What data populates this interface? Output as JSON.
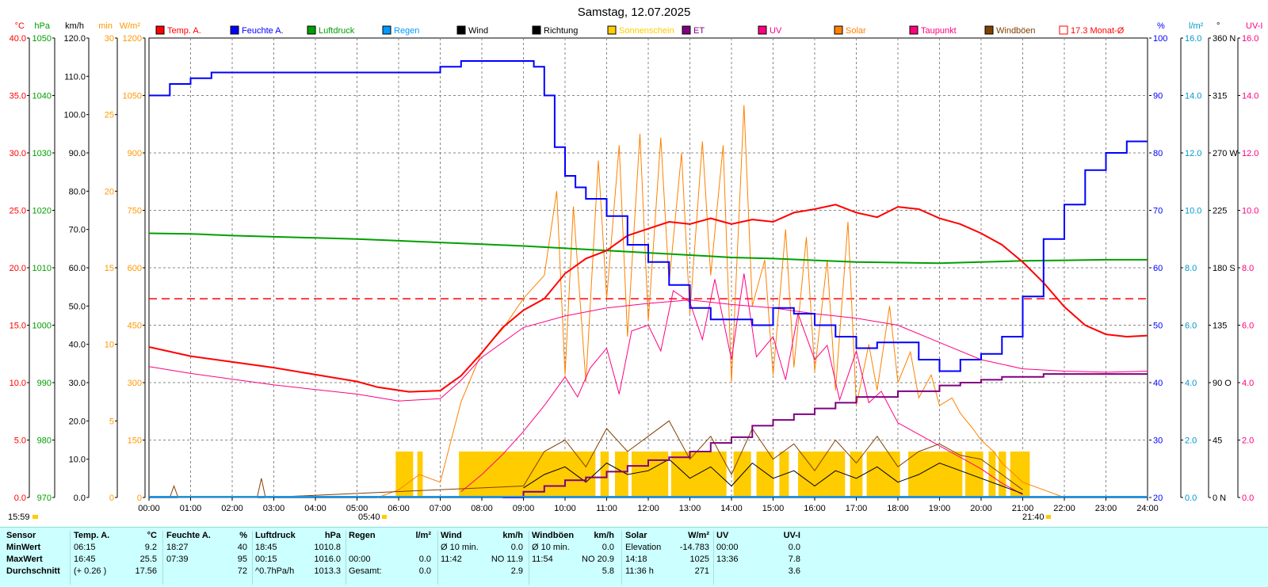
{
  "title": "Samstag, 12.07.2025",
  "current_time": "15:59",
  "sunrise": "05:40",
  "sunset": "21:40",
  "legend": [
    {
      "label": "Temp. A.",
      "color": "#ff0000"
    },
    {
      "label": "Feuchte A.",
      "color": "#0000ff"
    },
    {
      "label": "Luftdruck",
      "color": "#00a000"
    },
    {
      "label": "Regen",
      "color": "#0099ff"
    },
    {
      "label": "Wind",
      "color": "#000000"
    },
    {
      "label": "Richtung",
      "color": "#000000"
    },
    {
      "label": "Sonnenschein",
      "color": "#ffcc00"
    },
    {
      "label": "ET",
      "color": "#800080"
    },
    {
      "label": "UV",
      "color": "#ff0080"
    },
    {
      "label": "Solar",
      "color": "#ff8000"
    },
    {
      "label": "Taupunkt",
      "color": "#ff0080"
    },
    {
      "label": "Windböen",
      "color": "#804000"
    },
    {
      "label": "17.3 Monat-Ø",
      "color": "#ff0000"
    }
  ],
  "axes_left": [
    {
      "unit": "°C",
      "color": "#ff0000",
      "ticks": [
        "40.0",
        "35.0",
        "30.0",
        "25.0",
        "20.0",
        "15.0",
        "10.0",
        "5.0",
        "0.0"
      ]
    },
    {
      "unit": "hPa",
      "color": "#00a000",
      "ticks": [
        "1050",
        "1040",
        "1030",
        "1020",
        "1010",
        "1000",
        "990",
        "980",
        "970"
      ]
    },
    {
      "unit": "km/h",
      "color": "#000000",
      "ticks": [
        "120.0",
        "110.0",
        "100.0",
        "90.0",
        "80.0",
        "70.0",
        "60.0",
        "50.0",
        "40.0",
        "30.0",
        "20.0",
        "10.0",
        "0.0"
      ]
    },
    {
      "unit": "min",
      "color": "#ff9900",
      "ticks": [
        "30",
        "25",
        "20",
        "15",
        "10",
        "5",
        "0"
      ]
    },
    {
      "unit": "W/m²",
      "color": "#ff9900",
      "ticks": [
        "1200",
        "1050",
        "900",
        "750",
        "600",
        "450",
        "300",
        "150",
        "0"
      ]
    }
  ],
  "axes_right": [
    {
      "unit": "%",
      "color": "#0000ff",
      "ticks": [
        "100",
        "90",
        "80",
        "70",
        "60",
        "50",
        "40",
        "30",
        "20"
      ]
    },
    {
      "unit": "l/m²",
      "color": "#0099cc",
      "ticks": [
        "16.0",
        "14.0",
        "12.0",
        "10.0",
        "8.0",
        "6.0",
        "4.0",
        "2.0",
        "0.0"
      ]
    },
    {
      "unit": "°",
      "color": "#000000",
      "ticks": [
        "360 N",
        "315",
        "270 W",
        "225",
        "180 S",
        "135",
        "90 O",
        "45",
        "0 N"
      ]
    },
    {
      "unit": "UV-I",
      "color": "#ff0080",
      "ticks": [
        "16.0",
        "14.0",
        "12.0",
        "10.0",
        "8.0",
        "6.0",
        "4.0",
        "2.0",
        "0.0"
      ]
    }
  ],
  "x_ticks": [
    "00:00",
    "01:00",
    "02:00",
    "03:00",
    "04:00",
    "05:00",
    "06:00",
    "07:00",
    "08:00",
    "09:00",
    "10:00",
    "11:00",
    "12:00",
    "13:00",
    "14:00",
    "15:00",
    "16:00",
    "17:00",
    "18:00",
    "19:00",
    "20:00",
    "21:00",
    "22:00",
    "23:00",
    "24:00"
  ],
  "chart_data": {
    "type": "line",
    "title": "Samstag, 12.07.2025",
    "xlim": [
      "00:00",
      "24:00"
    ],
    "series": [
      {
        "name": "Temp. A.",
        "unit": "°C",
        "color": "#ff0000",
        "ylim": [
          0,
          40
        ],
        "x": [
          0,
          1,
          2,
          3,
          4,
          5,
          5.5,
          6.25,
          7,
          7.5,
          8,
          8.5,
          9,
          9.5,
          10,
          10.5,
          11,
          11.5,
          12,
          12.5,
          13,
          13.5,
          14,
          14.5,
          15,
          15.5,
          16,
          16.5,
          17,
          17.5,
          18,
          18.5,
          19,
          19.5,
          20,
          20.5,
          21,
          21.5,
          22,
          22.5,
          23,
          23.5,
          24
        ],
        "y": [
          13.1,
          12.3,
          11.8,
          11.3,
          10.7,
          10.1,
          9.6,
          9.2,
          9.3,
          10.6,
          12.6,
          14.8,
          16.3,
          17.3,
          19.5,
          20.8,
          21.5,
          22.8,
          23.4,
          24.0,
          23.8,
          24.3,
          23.8,
          24.2,
          24.0,
          24.8,
          25.1,
          25.5,
          24.8,
          24.4,
          25.3,
          25.1,
          24.3,
          23.8,
          23.0,
          22.0,
          20.5,
          18.7,
          16.6,
          15.0,
          14.2,
          14.0,
          14.1
        ]
      },
      {
        "name": "Feuchte A.",
        "unit": "%",
        "color": "#0000ff",
        "ylim": [
          20,
          100
        ],
        "x": [
          0,
          0.5,
          1,
          1.5,
          2,
          3,
          4,
          5,
          6,
          6.75,
          7,
          7.5,
          8,
          8.5,
          9,
          9.25,
          9.5,
          9.75,
          10,
          10.25,
          10.5,
          11,
          11.5,
          12,
          12.5,
          13,
          13.5,
          14,
          14.5,
          15,
          15.5,
          16,
          16.5,
          17,
          17.5,
          18,
          18.5,
          19,
          19.5,
          20,
          20.5,
          21,
          21.5,
          22,
          22.5,
          23,
          23.5,
          24
        ],
        "y": [
          90,
          92,
          93,
          94,
          94,
          94,
          94,
          94,
          94,
          94,
          95,
          96,
          96,
          96,
          96,
          95,
          90,
          81,
          76,
          74,
          72,
          69,
          64,
          61,
          57,
          53,
          51,
          51,
          50,
          53,
          52,
          50,
          48,
          46,
          47,
          47,
          44,
          42,
          44,
          45,
          48,
          55,
          65,
          71,
          77,
          80,
          82,
          82
        ]
      },
      {
        "name": "Luftdruck",
        "unit": "hPa",
        "color": "#00a000",
        "ylim": [
          970,
          1050
        ],
        "x": [
          0,
          1,
          2,
          3,
          4,
          5,
          6,
          7,
          8,
          9,
          10,
          11,
          12,
          13,
          14,
          15,
          16,
          17,
          18,
          19,
          20,
          21,
          22,
          23,
          24
        ],
        "y": [
          1016.0,
          1015.9,
          1015.6,
          1015.4,
          1015.2,
          1015.0,
          1014.7,
          1014.4,
          1014.1,
          1013.8,
          1013.4,
          1013.0,
          1012.6,
          1012.2,
          1011.8,
          1011.6,
          1011.3,
          1011.0,
          1010.9,
          1010.8,
          1011.0,
          1011.2,
          1011.3,
          1011.4,
          1011.4
        ]
      },
      {
        "name": "Taupunkt",
        "unit": "°C",
        "color": "#ff0080",
        "ylim": [
          0,
          40
        ],
        "x": [
          0,
          1,
          2,
          3,
          4,
          5,
          6,
          7,
          7.5,
          8,
          9,
          10,
          11,
          12,
          13,
          14,
          15,
          16,
          17,
          18,
          19,
          20,
          21,
          22,
          23,
          24
        ],
        "y": [
          11.4,
          10.8,
          10.3,
          9.8,
          9.4,
          9.0,
          8.4,
          8.6,
          10.2,
          12.2,
          14.8,
          15.8,
          16.5,
          16.9,
          17.2,
          16.8,
          16.5,
          16.0,
          15.6,
          15.0,
          13.5,
          12.0,
          11.2,
          11.0,
          10.9,
          11.0
        ]
      },
      {
        "name": "Solar",
        "unit": "W/m²",
        "color": "#ff8000",
        "ylim": [
          0,
          1200
        ],
        "x": [
          5.5,
          6.0,
          6.5,
          7.0,
          7.5,
          8.0,
          8.5,
          9.0,
          9.5,
          9.8,
          10.0,
          10.2,
          10.5,
          10.8,
          11.0,
          11.3,
          11.5,
          11.8,
          12.0,
          12.3,
          12.5,
          12.8,
          13.0,
          13.3,
          13.5,
          13.8,
          14.0,
          14.3,
          14.5,
          14.8,
          15.0,
          15.3,
          15.5,
          15.8,
          16.0,
          16.3,
          16.5,
          16.8,
          17.0,
          17.3,
          17.5,
          17.8,
          18.0,
          18.3,
          18.5,
          18.8,
          19.0,
          19.3,
          19.5,
          19.8,
          20.0,
          20.3,
          20.5,
          20.8,
          21.0,
          21.5,
          22.0
        ],
        "y": [
          0,
          20,
          60,
          40,
          250,
          380,
          440,
          520,
          580,
          800,
          320,
          760,
          300,
          880,
          520,
          920,
          420,
          950,
          460,
          940,
          560,
          900,
          480,
          930,
          580,
          920,
          300,
          1025,
          500,
          620,
          320,
          700,
          340,
          680,
          330,
          620,
          280,
          720,
          240,
          400,
          280,
          500,
          300,
          380,
          260,
          320,
          240,
          260,
          220,
          180,
          150,
          120,
          90,
          60,
          40,
          20,
          0
        ]
      },
      {
        "name": "UV",
        "unit": "UV-I",
        "color": "#ff0080",
        "ylim": [
          0,
          16
        ],
        "x": [
          7.5,
          8,
          8.5,
          9,
          9.5,
          10,
          10.3,
          10.6,
          11,
          11.3,
          11.6,
          12,
          12.3,
          12.6,
          13,
          13.3,
          13.6,
          14,
          14.3,
          14.6,
          15,
          15.3,
          15.6,
          16,
          16.3,
          16.6,
          17,
          17.3,
          17.6,
          18,
          18.5,
          19,
          19.5,
          20,
          20.5,
          21
        ],
        "y": [
          0.2,
          0.8,
          1.5,
          2.3,
          3.2,
          4.2,
          3.5,
          4.5,
          5.2,
          3.6,
          5.8,
          6.0,
          5.1,
          7.2,
          6.8,
          5.5,
          7.6,
          4.8,
          7.8,
          4.9,
          5.6,
          4.1,
          6.4,
          4.8,
          5.3,
          3.4,
          5.1,
          3.3,
          3.7,
          2.6,
          2.2,
          1.8,
          1.4,
          1.0,
          0.5,
          0.1
        ]
      },
      {
        "name": "ET",
        "unit": "l/m²",
        "color": "#800080",
        "ylim": [
          0,
          16
        ],
        "x": [
          8.5,
          9.0,
          9.5,
          10.0,
          10.5,
          11.0,
          11.5,
          12.0,
          12.5,
          13.0,
          13.5,
          14.0,
          14.5,
          15.0,
          15.5,
          16.0,
          16.5,
          17.0,
          17.5,
          18.0,
          18.5,
          19.0,
          19.5,
          20.0,
          20.5,
          21.0,
          21.5,
          22.0,
          22.5,
          23.0,
          23.5,
          24.0
        ],
        "y": [
          0.0,
          0.2,
          0.4,
          0.6,
          0.7,
          0.9,
          1.1,
          1.3,
          1.4,
          1.6,
          1.9,
          2.1,
          2.5,
          2.7,
          2.9,
          3.1,
          3.3,
          3.5,
          3.5,
          3.7,
          3.7,
          3.9,
          4.0,
          4.1,
          4.2,
          4.2,
          4.3,
          4.3,
          4.3,
          4.3,
          4.3,
          4.3
        ]
      },
      {
        "name": "Wind",
        "unit": "km/h",
        "color": "#000000",
        "ylim": [
          0,
          120
        ],
        "x": [
          9,
          9.5,
          10,
          10.5,
          11,
          11.5,
          12,
          12.5,
          13,
          13.5,
          14,
          14.5,
          15,
          15.5,
          16,
          16.5,
          17,
          17.5,
          18,
          18.5,
          19,
          19.5,
          20,
          20.5,
          21
        ],
        "y": [
          2.5,
          6,
          8,
          4,
          9,
          6,
          7,
          10,
          5,
          8,
          3,
          9,
          5,
          7,
          3,
          7,
          5,
          8,
          4,
          6,
          9,
          7,
          5,
          3,
          1
        ]
      },
      {
        "name": "Windböen",
        "unit": "km/h",
        "color": "#804000",
        "ylim": [
          0,
          120
        ],
        "x": [
          0.5,
          0.6,
          0.7,
          2.6,
          2.7,
          2.8,
          9,
          9.5,
          10,
          10.5,
          11,
          11.5,
          12,
          12.5,
          13,
          13.5,
          14,
          14.5,
          15,
          15.5,
          16,
          16.5,
          17,
          17.5,
          18,
          18.5,
          19,
          19.5,
          20,
          20.5,
          21
        ],
        "y": [
          0,
          3,
          0,
          0,
          5,
          0,
          3,
          12,
          15,
          8,
          18,
          12,
          16,
          20,
          10,
          16,
          6,
          18,
          10,
          14,
          7,
          15,
          9,
          16,
          8,
          12,
          14,
          11,
          10,
          6,
          2
        ]
      },
      {
        "name": "Sonnenschein",
        "unit": "min",
        "color": "#ffcc00",
        "ylim": [
          0,
          30
        ],
        "x": [
          [
            5.93,
            6.35
          ],
          [
            6.45,
            6.58
          ],
          [
            7.45,
            10.73
          ],
          [
            10.85,
            11.05
          ],
          [
            11.2,
            11.52
          ],
          [
            11.6,
            12.48
          ],
          [
            12.55,
            13.88
          ],
          [
            14.05,
            14.47
          ],
          [
            14.6,
            15.02
          ],
          [
            15.15,
            15.38
          ],
          [
            15.6,
            16.73
          ],
          [
            16.85,
            17.15
          ],
          [
            17.25,
            18.05
          ],
          [
            18.25,
            19.55
          ],
          [
            19.62,
            20.05
          ],
          [
            20.18,
            20.35
          ],
          [
            20.42,
            20.6
          ],
          [
            20.7,
            21.17
          ]
        ],
        "y": "bars at 3 min each interval"
      }
    ],
    "reference_line": {
      "name": "17.3 Monat-Ø",
      "value": 17.3,
      "unit": "°C"
    }
  },
  "stats": {
    "headers": [
      "Sensor",
      "Temp. A.",
      "°C",
      "Feuchte A.",
      "%",
      "Luftdruck",
      "hPa",
      "Regen",
      "l/m²",
      "Wind",
      "km/h",
      "Windböen",
      "km/h",
      "Solar",
      "W/m²",
      "UV",
      "UV-I"
    ],
    "rows": [
      {
        "label": "MinWert",
        "temp_time": "06:15",
        "temp": "9.2",
        "hum_time": "18:27",
        "hum": "40",
        "press_time": "18:45",
        "press": "1010.8",
        "rain_time": "",
        "rain": "",
        "wind_time": "Ø 10 min.",
        "wind": "0.0",
        "gust_time": "Ø 10 min.",
        "gust": "0.0",
        "solar_time": "Elevation",
        "solar": "-14.783",
        "uv_time": "00:00",
        "uv": "0.0"
      },
      {
        "label": "MaxWert",
        "temp_time": "16:45",
        "temp": "25.5",
        "hum_time": "07:39",
        "hum": "95",
        "press_time": "00:15",
        "press": "1016.0",
        "rain_time": "00:00",
        "rain": "0.0",
        "wind_time": "11:42",
        "wind": "NO 11.9",
        "gust_time": "11:54",
        "gust": "NO 20.9",
        "solar_time": "14:18",
        "solar": "1025",
        "uv_time": "13:36",
        "uv": "7.8"
      },
      {
        "label": "Durchschnitt",
        "temp_time": "(+ 0.26 )",
        "temp": "17.56",
        "hum_time": "",
        "hum": "72",
        "press_time": "^0.7hPa/h",
        "press": "1013.3",
        "rain_time": "Gesamt:",
        "rain": "0.0",
        "wind_time": "",
        "wind": "2.9",
        "gust_time": "",
        "gust": "5.8",
        "solar_time": "11:36 h",
        "solar": "271",
        "uv_time": "",
        "uv": "3.6"
      }
    ]
  }
}
